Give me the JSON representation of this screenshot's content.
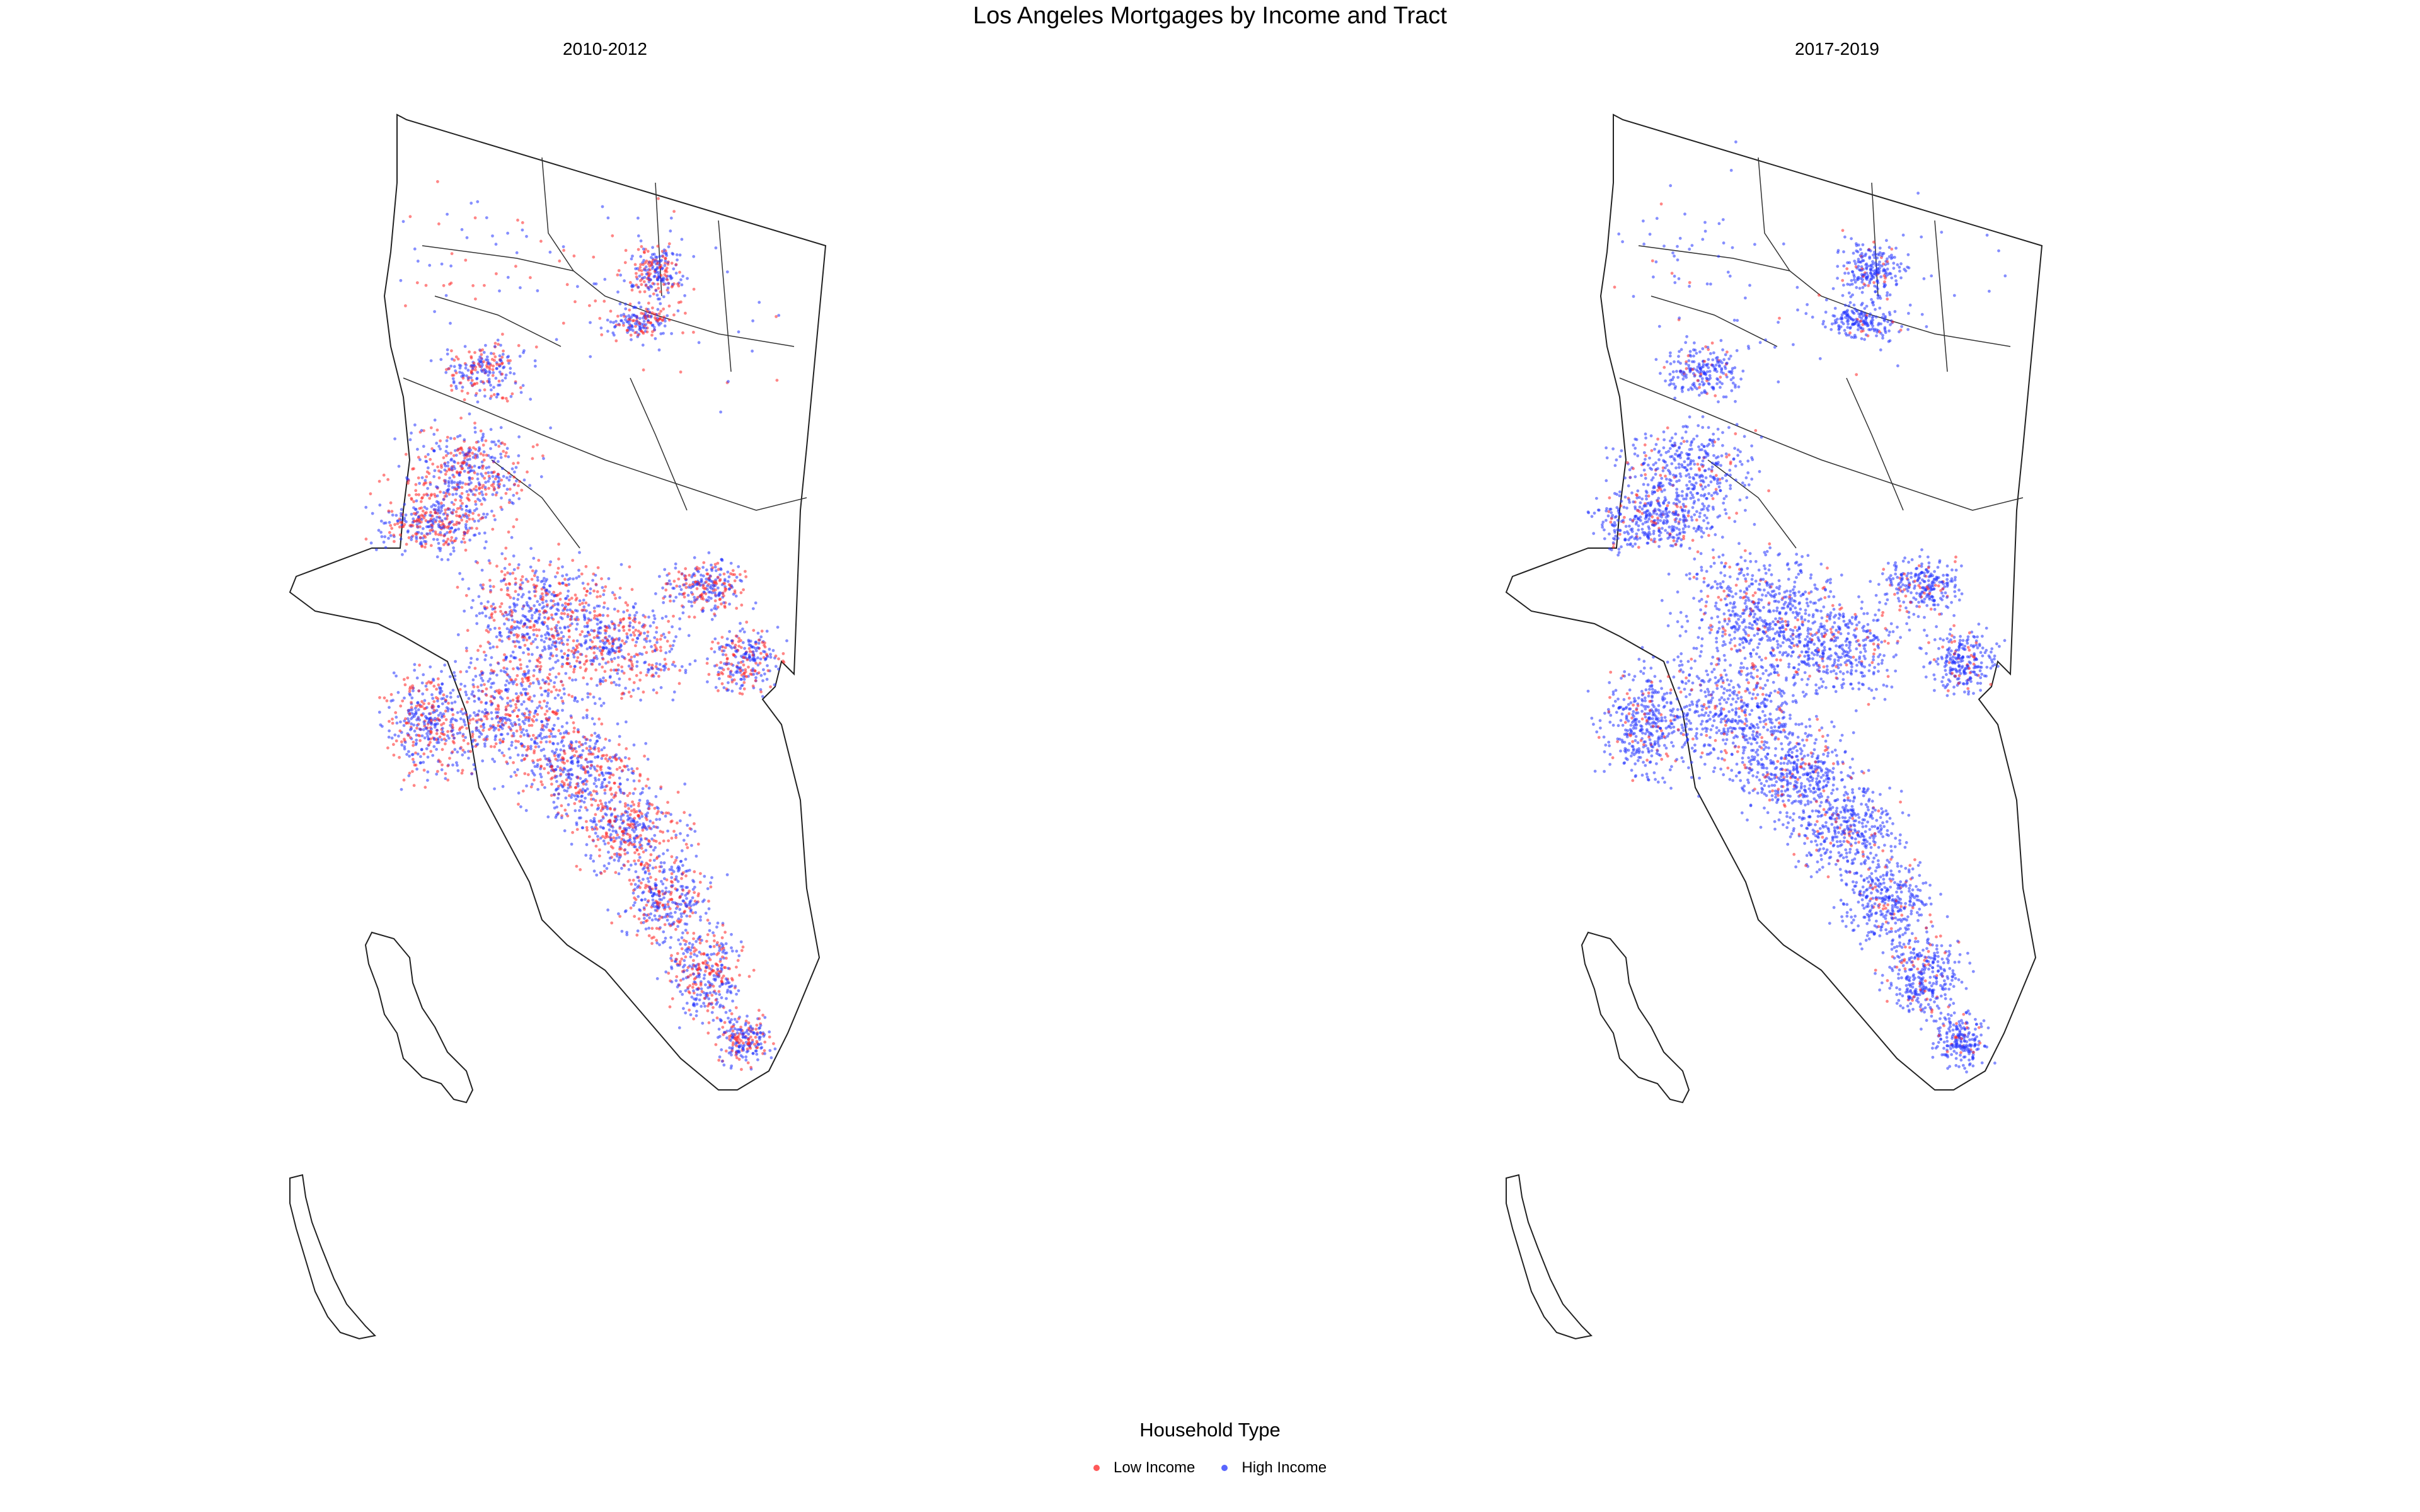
{
  "title": "Los Angeles Mortgages by Income and Tract",
  "panels": [
    {
      "label": "2010-2012",
      "low_income_share": 0.42
    },
    {
      "label": "2017-2019",
      "low_income_share": 0.12
    }
  ],
  "legend": {
    "title": "Household Type",
    "items": [
      {
        "label": "Low Income",
        "color": "#ff2222"
      },
      {
        "label": "High Income",
        "color": "#2233ff"
      }
    ]
  }
}
